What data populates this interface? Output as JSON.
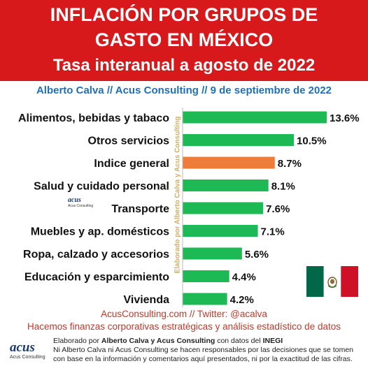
{
  "header": {
    "title_line1": "INFLACIÓN POR GRUPOS DE",
    "title_line2": "GASTO EN MÉXICO",
    "title_line3": "Tasa interanual a agosto de 2022"
  },
  "byline": "Alberto Calva // Acus Consulting // 9 de septiembre de 2022",
  "watermark": "Elaborado por Alberto Calva y Acus Consulting",
  "colors": {
    "header_bg": "#d7191b",
    "bar_green": "#1db954",
    "bar_highlight": "#ef7d3a",
    "byline": "#1f6fb5",
    "tagline": "#c0392b"
  },
  "chart_data": {
    "type": "bar",
    "orientation": "horizontal",
    "categories": [
      "Alimentos, bebidas y tabaco",
      "Otros servicios",
      "Indice general",
      "Salud y cuidado personal",
      "Transporte",
      "Muebles y ap. domésticos",
      "Ropa, calzado y accesorios",
      "Educación y esparcimiento",
      "Vivienda"
    ],
    "values": [
      13.6,
      10.5,
      8.7,
      8.1,
      7.6,
      7.1,
      5.6,
      4.4,
      4.2
    ],
    "value_labels": [
      "13.6%",
      "10.5%",
      "8.7%",
      "8.1%",
      "7.6%",
      "7.1%",
      "5.6%",
      "4.4%",
      "4.2%"
    ],
    "highlight_category": "Indice general",
    "xlim": [
      0,
      13.6
    ],
    "grid": false,
    "legend": "none"
  },
  "logo": {
    "word": "acus",
    "sub": "Acus Consulting"
  },
  "flag_icon": "mexico-flag-icon",
  "footer": {
    "website": "AcusConsulting.com // Twitter: @acalva",
    "tagline": "Hacemos finanzas corporativas estratégicas y análisis estadístico de datos",
    "line1_pre": "Elaborado por ",
    "line1_bold": "Alberto Calva y Acus Consulting",
    "line1_mid": " con datos del ",
    "line1_bold2": "INEGI",
    "line2": "Ni Alberto Calva ni Acus Consulting se hacen responsables por las decisiones que se tomen",
    "line3": "con base en la información y comentarios aquí presentados, ni por la exactitud de las cifras."
  }
}
